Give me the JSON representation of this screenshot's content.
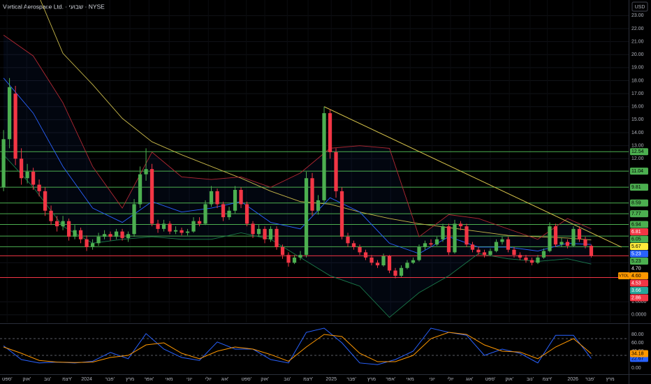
{
  "chart_data": [
    {
      "type": "candlestick",
      "title": "Vertical Aerospace Ltd. · שבועי · NYSE",
      "currency": "USD",
      "xlim": [
        -0.6,
        105.3
      ],
      "xticks": [
        {
          "value": 0.6,
          "label": "ספט'"
        },
        {
          "value": 3.9,
          "label": "אוק'"
        },
        {
          "value": 7.4,
          "label": "נוב'"
        },
        {
          "value": 10.7,
          "label": "דצמ'"
        },
        {
          "value": 14,
          "label": "2024"
        },
        {
          "value": 17.9,
          "label": "פבר'"
        },
        {
          "value": 21.3,
          "label": "מרץ"
        },
        {
          "value": 24.5,
          "label": "אפר'"
        },
        {
          "value": 27.9,
          "label": "מאי"
        },
        {
          "value": 31.3,
          "label": "יוני"
        },
        {
          "value": 34.5,
          "label": "יולי"
        },
        {
          "value": 37.3,
          "label": "אוג'"
        },
        {
          "value": 40.9,
          "label": "ספט'"
        },
        {
          "value": 44,
          "label": "אוק'"
        },
        {
          "value": 47.8,
          "label": "נוב'"
        },
        {
          "value": 51.3,
          "label": "דצמ'"
        },
        {
          "value": 55.2,
          "label": "2025"
        },
        {
          "value": 58.6,
          "label": "פבר'"
        },
        {
          "value": 62,
          "label": "מרץ"
        },
        {
          "value": 65.2,
          "label": "אפר'"
        },
        {
          "value": 68.5,
          "label": "מאי"
        },
        {
          "value": 72.2,
          "label": "יוני"
        },
        {
          "value": 75.3,
          "label": "יולי"
        },
        {
          "value": 78.5,
          "label": "אוג'"
        },
        {
          "value": 82,
          "label": "ספט'"
        },
        {
          "value": 85.2,
          "label": "אוק'"
        },
        {
          "value": 88.7,
          "label": "נוב'"
        },
        {
          "value": 91.6,
          "label": "דצמ'"
        },
        {
          "value": 95.9,
          "label": "2026"
        },
        {
          "value": 98.8,
          "label": "פבר'"
        },
        {
          "value": 102.2,
          "label": "מרץ"
        }
      ],
      "ylim": [
        -0.6,
        24.2
      ],
      "yticks": [
        {
          "value": 23,
          "label": "23.00"
        },
        {
          "value": 22,
          "label": "22.00"
        },
        {
          "value": 21,
          "label": "21.00"
        },
        {
          "value": 20,
          "label": "20.00"
        },
        {
          "value": 19,
          "label": "19.00"
        },
        {
          "value": 18,
          "label": "18.00"
        },
        {
          "value": 17,
          "label": "17.00"
        },
        {
          "value": 16,
          "label": "16.00"
        },
        {
          "value": 15,
          "label": "15.00"
        },
        {
          "value": 14,
          "label": "14.00"
        },
        {
          "value": 13,
          "label": "13.00"
        },
        {
          "value": 12,
          "label": "12.00"
        },
        {
          "value": 4,
          "label": "4.00"
        },
        {
          "value": 1,
          "label": "1.0000"
        },
        {
          "value": 0,
          "label": "0.0000"
        }
      ],
      "up_color": "#4caf50",
      "down_color": "#f23645",
      "candles": [
        [
          9.8,
          14.2,
          9.5,
          13.5
        ],
        [
          13.5,
          18.2,
          12.8,
          17.5
        ],
        [
          17,
          17.6,
          11.5,
          12
        ],
        [
          12,
          12.8,
          10,
          10.5
        ],
        [
          10.5,
          11.6,
          10.1,
          11
        ],
        [
          11,
          11.3,
          9.6,
          10
        ],
        [
          10,
          10.4,
          9.1,
          9.5
        ],
        [
          9.5,
          9.8,
          7.6,
          8
        ],
        [
          8,
          8.4,
          6.9,
          7.2
        ],
        [
          7.2,
          7.6,
          6.4,
          6.8
        ],
        [
          6.8,
          7.6,
          6.5,
          7.2
        ],
        [
          7.2,
          7.4,
          5.7,
          6
        ],
        [
          6,
          6.9,
          5.8,
          6.5
        ],
        [
          6.5,
          6.7,
          5.5,
          5.8
        ],
        [
          5.8,
          6.1,
          4.9,
          5.2
        ],
        [
          5.2,
          5.8,
          5,
          5.5
        ],
        [
          5.5,
          6.3,
          5.3,
          6
        ],
        [
          6,
          6.5,
          5.8,
          6.2
        ],
        [
          6.2,
          6.4,
          5.7,
          6
        ],
        [
          6,
          6.6,
          5.8,
          6.4
        ],
        [
          6.4,
          6.6,
          5.7,
          5.9
        ],
        [
          5.9,
          6.4,
          5.6,
          6.2
        ],
        [
          6.2,
          8.9,
          6,
          8.5
        ],
        [
          8.5,
          11.4,
          8.2,
          10.8
        ],
        [
          10.8,
          12.8,
          10.3,
          11.2
        ],
        [
          11.2,
          11.6,
          6.8,
          7
        ],
        [
          7,
          7.3,
          6.3,
          6.6
        ],
        [
          6.6,
          7.3,
          6.4,
          7
        ],
        [
          7,
          7.2,
          6.2,
          6.4
        ],
        [
          6.4,
          6.8,
          6.2,
          6.5
        ],
        [
          6.5,
          6.7,
          6.1,
          6.3
        ],
        [
          6.3,
          6.6,
          6.1,
          6.4
        ],
        [
          6.4,
          7.5,
          6.3,
          7.2
        ],
        [
          7.2,
          7.5,
          6.8,
          7
        ],
        [
          7,
          8.8,
          6.9,
          8.5
        ],
        [
          8.5,
          9.9,
          8.3,
          9.5
        ],
        [
          9.5,
          9.7,
          8.2,
          8.5
        ],
        [
          8.5,
          8.7,
          7.2,
          7.5
        ],
        [
          7.5,
          8.3,
          7.3,
          8
        ],
        [
          8,
          9.9,
          7.8,
          9.6
        ],
        [
          9.6,
          9.8,
          8.2,
          8.5
        ],
        [
          8.5,
          8.7,
          6.8,
          7
        ],
        [
          7,
          7.2,
          5.9,
          6.2
        ],
        [
          6.2,
          6.9,
          6,
          6.6
        ],
        [
          6.6,
          6.8,
          5.5,
          5.8
        ],
        [
          5.8,
          6.8,
          5.6,
          6.6
        ],
        [
          6.6,
          6.8,
          5,
          5.2
        ],
        [
          5.2,
          5.4,
          4.3,
          4.6
        ],
        [
          4.6,
          4.8,
          3.7,
          4
        ],
        [
          4,
          4.6,
          3.9,
          4.4
        ],
        [
          4.4,
          4.9,
          4.2,
          4.6
        ],
        [
          4.6,
          11,
          4.4,
          10.5
        ],
        [
          10.5,
          10.9,
          7.6,
          8
        ],
        [
          8,
          9.2,
          7.7,
          8.8
        ],
        [
          8.8,
          16,
          8.5,
          15.5
        ],
        [
          15.5,
          15.8,
          12,
          12.5
        ],
        [
          12.5,
          12.8,
          9,
          9.5
        ],
        [
          9.5,
          9.8,
          5.8,
          6
        ],
        [
          6,
          6.3,
          5.2,
          5.5
        ],
        [
          5.5,
          5.7,
          5,
          5.2
        ],
        [
          5.2,
          5.4,
          4.6,
          4.8
        ],
        [
          4.8,
          5,
          4.2,
          4.4
        ],
        [
          4.4,
          4.6,
          3.8,
          4
        ],
        [
          4,
          4.2,
          3.6,
          3.8
        ],
        [
          3.8,
          4.7,
          3.7,
          4.5
        ],
        [
          4.5,
          4.6,
          3.2,
          3.4
        ],
        [
          3.4,
          3.6,
          2.8,
          3
        ],
        [
          3,
          3.8,
          2.9,
          3.6
        ],
        [
          3.6,
          4.2,
          3.5,
          4
        ],
        [
          4,
          4.4,
          3.9,
          4.2
        ],
        [
          4.2,
          5.4,
          4.1,
          5.2
        ],
        [
          5.2,
          5.7,
          5,
          5.5
        ],
        [
          5.5,
          5.8,
          5.2,
          5.4
        ],
        [
          5.4,
          6,
          5.3,
          5.8
        ],
        [
          5.8,
          7,
          5.6,
          6.8
        ],
        [
          6.8,
          7,
          4.6,
          4.8
        ],
        [
          4.8,
          7.3,
          4.7,
          7
        ],
        [
          7,
          7.2,
          6.5,
          6.8
        ],
        [
          6.8,
          7,
          5.2,
          5.4
        ],
        [
          5.4,
          5.6,
          4.8,
          5
        ],
        [
          5,
          5.2,
          4.6,
          4.8
        ],
        [
          4.8,
          5,
          4.4,
          4.6
        ],
        [
          4.6,
          5.1,
          4.5,
          4.9
        ],
        [
          4.9,
          5.8,
          4.8,
          5.6
        ],
        [
          5.6,
          6,
          5.4,
          5.8
        ],
        [
          5.8,
          6,
          4.8,
          5
        ],
        [
          5,
          5.2,
          4.4,
          4.6
        ],
        [
          4.6,
          4.8,
          4.2,
          4.4
        ],
        [
          4.4,
          4.6,
          4,
          4.2
        ],
        [
          4.2,
          4.4,
          3.8,
          4
        ],
        [
          4,
          4.6,
          3.9,
          4.4
        ],
        [
          4.4,
          5.1,
          4.3,
          4.9
        ],
        [
          4.9,
          7.1,
          4.8,
          6.8
        ],
        [
          6.8,
          7,
          5.2,
          5.4
        ],
        [
          5.4,
          5.9,
          5.2,
          5.6
        ],
        [
          5.6,
          5.8,
          5.1,
          5.3
        ],
        [
          5.3,
          6.8,
          5.2,
          6.6
        ],
        [
          6.6,
          6.8,
          5.6,
          5.8
        ],
        [
          5.8,
          6,
          5.1,
          5.3
        ],
        [
          5.3,
          5.4,
          4.4,
          4.53
        ]
      ],
      "overlay_x": [
        0,
        5,
        10,
        15,
        20,
        25,
        30,
        35,
        40,
        45,
        50,
        55,
        60,
        65,
        70,
        75,
        80,
        85,
        90,
        95,
        99
      ],
      "overlays": [
        {
          "color": "#c9b94a",
          "values": [
            28,
            25.5,
            20.1,
            17.7,
            15.1,
            13.3,
            12.3,
            11.4,
            10.5,
            9.5,
            8.7,
            8.5,
            7.9,
            7.4,
            7,
            6.7,
            6.4,
            6.1,
            6,
            5.9,
            5.75
          ]
        },
        {
          "color": "#2962ff",
          "values": [
            18.2,
            15.5,
            11.4,
            8.2,
            7.1,
            8.7,
            7.9,
            8.2,
            8.7,
            7.1,
            6.6,
            9,
            7.9,
            5.5,
            4.7,
            6,
            5.2,
            5.2,
            4.9,
            5.5,
            5.4
          ]
        },
        {
          "color": "#b22833",
          "values": [
            21.5,
            19.9,
            16.3,
            11.4,
            8.2,
            12.5,
            10.6,
            10.4,
            10.6,
            9.8,
            10.9,
            12.8,
            13,
            12.8,
            6,
            7.7,
            7.4,
            6.6,
            5.8,
            7.4,
            6.6
          ]
        },
        {
          "color": "#1b7a4a",
          "values": [
            12.3,
            9.8,
            6.8,
            5.5,
            5.8,
            6,
            5.8,
            5.8,
            6.3,
            5.8,
            4.4,
            3,
            2.2,
            -0.2,
            1.7,
            3,
            4.7,
            4.3,
            4.1,
            4.3,
            3.9
          ]
        }
      ],
      "trendline": {
        "color": "#d6c34a",
        "x": [
          54,
          104.1
        ],
        "values": [
          16,
          5.2
        ]
      },
      "levels": {
        "values": [
          12.54,
          11.04,
          9.81,
          8.59,
          7.77,
          6.94,
          6.05,
          5.23,
          4.53,
          2.86
        ],
        "colors": [
          "#4caf50",
          "#4caf50",
          "#4caf50",
          "#4caf50",
          "#4caf50",
          "#4caf50",
          "#4caf50",
          "#4caf50",
          "#f23645",
          "#f23645"
        ]
      },
      "symbol": "VTOL",
      "price_tags": {
        "values": [
          12.54,
          11.04,
          9.81,
          8.59,
          7.77,
          6.94,
          6.81,
          6.05,
          5.67,
          5.23,
          5.23,
          4.7,
          4.6,
          4.53,
          3.66,
          2.86
        ],
        "value_labels": [
          "12.54",
          "11.04",
          "9.81",
          "8.59",
          "7.77",
          "6.94",
          "6.81",
          "6.05",
          "5.67",
          "5.23",
          "5.23",
          "4.70",
          "4.60",
          "4.53",
          "3.66",
          "2.86"
        ],
        "colors": [
          "#4caf50",
          "#4caf50",
          "#4caf50",
          "#4caf50",
          "#4caf50",
          "#4caf50",
          "#f23645",
          "#4caf50",
          "#ffeb3b",
          "#2962ff",
          "#4caf50",
          "#000000",
          "#ff9800",
          "#f23645",
          "#26a69a",
          "#f23645"
        ]
      }
    },
    {
      "type": "line",
      "xlim": [
        -0.6,
        105.3
      ],
      "ylim": [
        -8.3,
        100
      ],
      "yticks": [
        {
          "value": 80,
          "label": "80.00"
        },
        {
          "value": 60,
          "label": "60.00"
        },
        {
          "value": 40,
          "label": "40.00"
        },
        {
          "value": 20,
          "label": "20.00"
        },
        {
          "value": 0,
          "label": "0.00"
        }
      ],
      "levels": [
        70,
        30
      ],
      "x": [
        0,
        3,
        6,
        9,
        12,
        15,
        18,
        21,
        24,
        27,
        30,
        33,
        36,
        39,
        42,
        45,
        48,
        51,
        54,
        57,
        60,
        63,
        66,
        69,
        72,
        75,
        78,
        81,
        84,
        87,
        90,
        93,
        96,
        99
      ],
      "series": [
        {
          "color": "#2962ff",
          "values": [
            53,
            20,
            12,
            14,
            12,
            16,
            37,
            22,
            82,
            45,
            25,
            18,
            62,
            45,
            45,
            20,
            12,
            85,
            95,
            60,
            12,
            8,
            20,
            40,
            95,
            85,
            78,
            30,
            45,
            35,
            12,
            78,
            78,
            22.67
          ],
          "value_labels": [
            "22.67"
          ]
        },
        {
          "color": "#ff9800",
          "values": [
            50,
            35,
            18,
            14,
            13,
            14,
            25,
            30,
            55,
            60,
            35,
            22,
            40,
            50,
            45,
            32,
            16,
            50,
            80,
            75,
            35,
            15,
            15,
            30,
            70,
            85,
            80,
            55,
            40,
            38,
            22,
            50,
            70,
            34.18
          ],
          "value_labels": [
            "34.18"
          ]
        }
      ]
    }
  ]
}
